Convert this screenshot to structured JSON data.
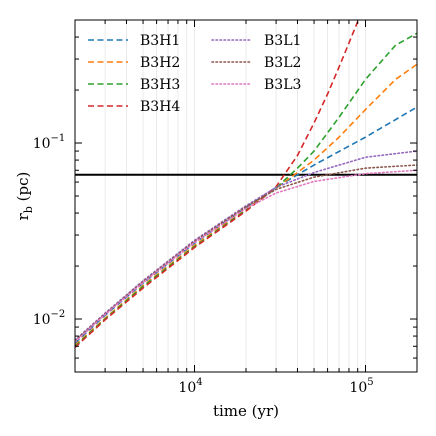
{
  "chart_data": {
    "type": "line",
    "xlabel": "time (yr)",
    "ylabel": "r_b (pc)",
    "xscale": "log",
    "yscale": "log",
    "xlim": [
      2000,
      200000
    ],
    "ylim": [
      0.005,
      0.5
    ],
    "grid": "vertical minor lines only",
    "legend_position": "top-left, two columns",
    "x_ticks": [
      {
        "value": 10000,
        "base": "10",
        "exp": "4"
      },
      {
        "value": 100000,
        "base": "10",
        "exp": "5"
      }
    ],
    "y_ticks": [
      {
        "value": 0.01,
        "base": "10",
        "exp": "−2"
      },
      {
        "value": 0.1,
        "base": "10",
        "exp": "−1"
      }
    ],
    "hline": {
      "value": 0.066,
      "color": "#000000"
    },
    "series": [
      {
        "name": "B3H1",
        "style": "dashed",
        "color": "#1f77b4",
        "x": [
          2000,
          3000,
          5000,
          10000,
          20000,
          30000,
          50000,
          100000,
          200000
        ],
        "y": [
          0.0073,
          0.0105,
          0.016,
          0.027,
          0.043,
          0.056,
          0.075,
          0.108,
          0.16
        ]
      },
      {
        "name": "B3H2",
        "style": "dashed",
        "color": "#ff7f0e",
        "x": [
          2000,
          3000,
          5000,
          10000,
          20000,
          30000,
          40000,
          50000,
          70000,
          100000,
          150000,
          200000
        ],
        "y": [
          0.0071,
          0.0101,
          0.0155,
          0.0262,
          0.042,
          0.0555,
          0.068,
          0.08,
          0.108,
          0.155,
          0.23,
          0.28
        ]
      },
      {
        "name": "B3H3",
        "style": "dashed",
        "color": "#2ca02c",
        "x": [
          2000,
          3000,
          5000,
          10000,
          20000,
          30000,
          40000,
          50000,
          70000,
          100000,
          150000,
          200000
        ],
        "y": [
          0.007,
          0.01,
          0.0153,
          0.0258,
          0.0415,
          0.0555,
          0.072,
          0.09,
          0.14,
          0.23,
          0.36,
          0.42
        ]
      },
      {
        "name": "B3H4",
        "style": "dashed",
        "color": "#d62728",
        "x": [
          2000,
          3000,
          5000,
          10000,
          20000,
          30000,
          40000,
          50000,
          60000,
          70000,
          80000,
          90000
        ],
        "y": [
          0.0069,
          0.0099,
          0.015,
          0.0255,
          0.041,
          0.0565,
          0.085,
          0.13,
          0.19,
          0.27,
          0.37,
          0.49
        ]
      },
      {
        "name": "B3L1",
        "style": "dotted",
        "color": "#9467bd",
        "x": [
          2000,
          3000,
          5000,
          10000,
          20000,
          30000,
          50000,
          100000,
          200000
        ],
        "y": [
          0.0076,
          0.0108,
          0.0165,
          0.028,
          0.044,
          0.056,
          0.068,
          0.083,
          0.09
        ]
      },
      {
        "name": "B3L2",
        "style": "dotted",
        "color": "#8c564b",
        "x": [
          2000,
          3000,
          5000,
          10000,
          20000,
          30000,
          50000,
          100000,
          200000
        ],
        "y": [
          0.0075,
          0.0107,
          0.0163,
          0.0276,
          0.0435,
          0.0545,
          0.064,
          0.072,
          0.075
        ]
      },
      {
        "name": "B3L3",
        "style": "dotted",
        "color": "#e377c2",
        "x": [
          2000,
          3000,
          5000,
          10000,
          20000,
          30000,
          50000,
          100000,
          200000
        ],
        "y": [
          0.0074,
          0.0106,
          0.0161,
          0.0272,
          0.0425,
          0.052,
          0.0605,
          0.067,
          0.07
        ]
      }
    ]
  }
}
